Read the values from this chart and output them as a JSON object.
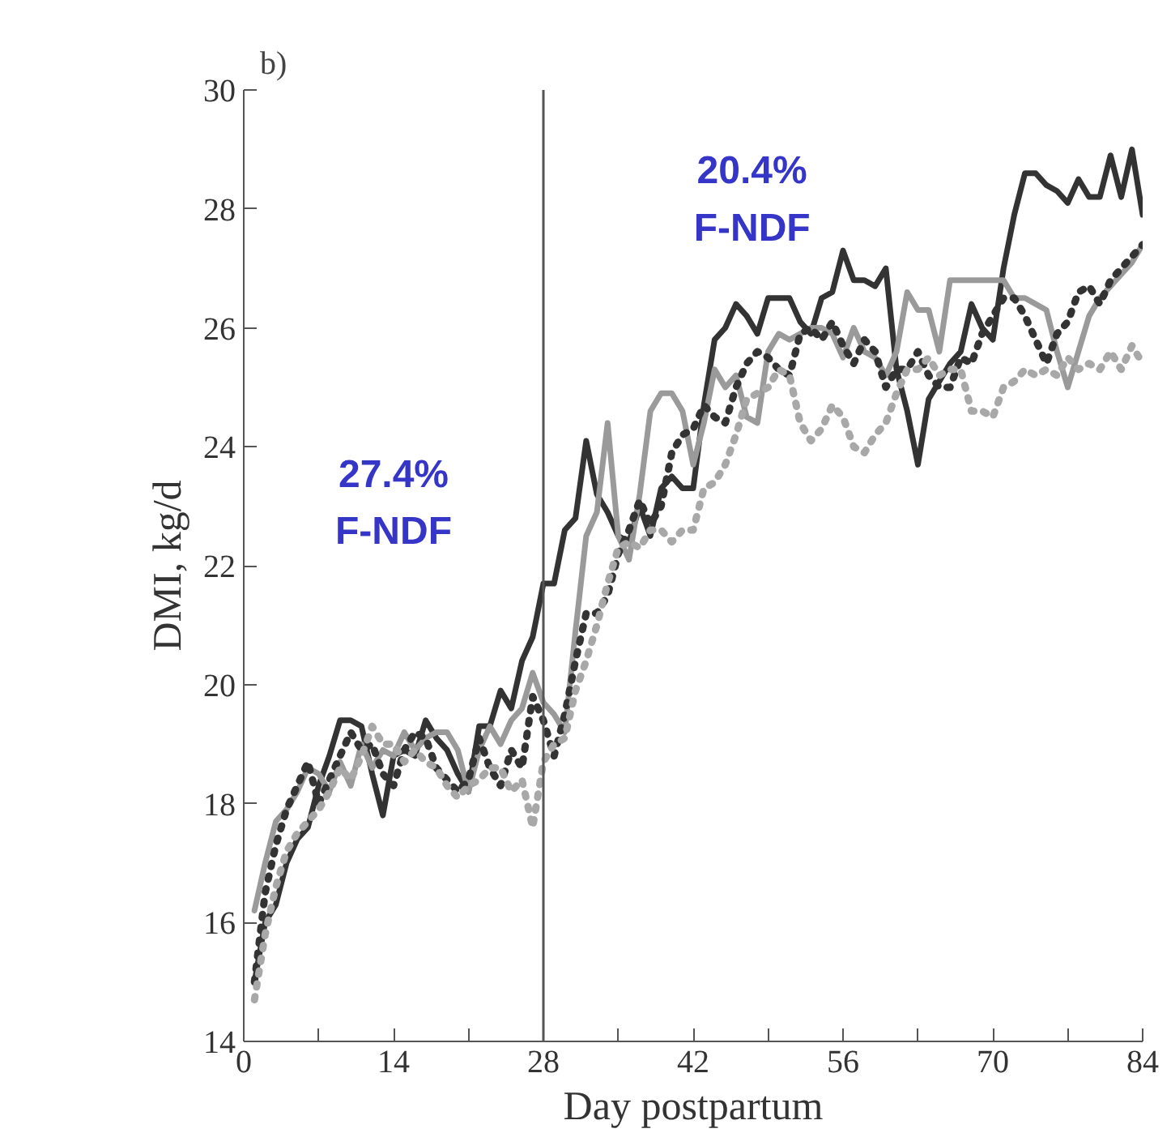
{
  "chart_data": {
    "type": "line",
    "title": "b)",
    "xlabel": "Day postpartum",
    "ylabel": "DMI, kg/d",
    "annotations": [
      "27.4%\nF-NDF",
      "20.4%\nF-NDF"
    ],
    "x": [
      1,
      2,
      3,
      4,
      5,
      6,
      7,
      8,
      9,
      10,
      11,
      12,
      13,
      14,
      15,
      16,
      17,
      18,
      19,
      20,
      21,
      22,
      23,
      24,
      25,
      26,
      27,
      28,
      29,
      30,
      31,
      32,
      33,
      34,
      35,
      36,
      37,
      38,
      39,
      40,
      41,
      42,
      43,
      44,
      45,
      46,
      47,
      48,
      49,
      50,
      51,
      52,
      53,
      54,
      55,
      56,
      57,
      58,
      59,
      60,
      61,
      62,
      63,
      64,
      65,
      66,
      67,
      68,
      69,
      70,
      71,
      72,
      73,
      74,
      75,
      76,
      77,
      78,
      79,
      80,
      81,
      82,
      83,
      84
    ],
    "xlim": [
      0,
      84
    ],
    "xticks": [
      0,
      {
        "value": 7,
        "label": null
      },
      14,
      {
        "value": 21,
        "label": null
      },
      28,
      {
        "value": 35,
        "label": null
      },
      42,
      {
        "value": 49,
        "label": null
      },
      56,
      {
        "value": 63,
        "label": null
      },
      70,
      {
        "value": 77,
        "label": null
      },
      84
    ],
    "ylim": [
      14,
      30
    ],
    "yticks": [
      14,
      16,
      18,
      20,
      22,
      24,
      26,
      28,
      30
    ],
    "grid": false,
    "ref_lines": [
      {
        "axis": "x",
        "value": 28,
        "color": "#555555"
      }
    ],
    "series": [
      {
        "color": "#333333",
        "line_style": "solid",
        "values": [
          15.0,
          16.0,
          16.3,
          17.0,
          17.4,
          17.6,
          18.3,
          18.8,
          19.4,
          19.4,
          19.3,
          18.5,
          17.8,
          18.8,
          18.9,
          18.8,
          19.4,
          19.1,
          18.9,
          18.5,
          18.2,
          19.3,
          19.3,
          19.9,
          19.6,
          20.4,
          20.8,
          21.7,
          21.7,
          22.6,
          22.8,
          24.1,
          23.2,
          22.9,
          22.5,
          22.4,
          23.0,
          22.5,
          23.3,
          23.5,
          23.3,
          23.3,
          24.7,
          25.8,
          26.0,
          26.4,
          26.2,
          25.9,
          26.5,
          26.5,
          26.5,
          26.1,
          25.9,
          26.5,
          26.6,
          27.3,
          26.8,
          26.8,
          26.7,
          27.0,
          25.3,
          24.6,
          23.7,
          24.8,
          25.1,
          25.4,
          25.6,
          26.4,
          26.0,
          25.8,
          27.0,
          27.9,
          28.6,
          28.6,
          28.4,
          28.3,
          28.1,
          28.5,
          28.2,
          28.2,
          28.9,
          28.2,
          29.0,
          27.9
        ]
      },
      {
        "color": "#9a9a9a",
        "line_style": "solid",
        "values": [
          16.2,
          17.0,
          17.7,
          17.9,
          18.2,
          18.6,
          18.5,
          18.2,
          18.7,
          18.3,
          19.0,
          18.6,
          18.9,
          18.8,
          19.2,
          18.9,
          19.1,
          19.2,
          19.2,
          18.9,
          18.2,
          18.9,
          19.3,
          19.0,
          19.4,
          19.6,
          20.2,
          19.7,
          19.5,
          19.2,
          20.9,
          22.5,
          22.9,
          24.4,
          22.5,
          22.1,
          23.2,
          24.6,
          24.9,
          24.9,
          24.6,
          23.7,
          24.4,
          25.3,
          25.0,
          25.2,
          24.5,
          24.4,
          25.6,
          25.9,
          25.8,
          25.9,
          26.0,
          26.0,
          25.9,
          25.5,
          26.0,
          25.6,
          25.5,
          25.2,
          25.6,
          26.6,
          26.3,
          26.3,
          25.6,
          26.8,
          26.8,
          26.8,
          26.8,
          26.8,
          26.8,
          26.5,
          26.5,
          26.4,
          26.3,
          25.6,
          25.0,
          25.6,
          26.2,
          26.5,
          26.7,
          26.9,
          27.1,
          27.4
        ]
      },
      {
        "color": "#333333",
        "line_style": "dotted",
        "values": [
          15.0,
          16.5,
          17.3,
          17.9,
          18.3,
          18.7,
          18.0,
          18.4,
          18.8,
          19.2,
          18.9,
          19.0,
          18.5,
          18.3,
          18.9,
          19.2,
          19.1,
          18.6,
          18.4,
          18.2,
          18.4,
          19.1,
          18.6,
          18.3,
          18.9,
          18.6,
          19.8,
          19.4,
          18.8,
          19.5,
          20.4,
          21.2,
          21.2,
          21.5,
          22.2,
          22.6,
          23.1,
          22.7,
          23.0,
          23.9,
          24.2,
          24.3,
          24.7,
          24.5,
          24.4,
          25.0,
          25.4,
          25.6,
          25.5,
          25.3,
          25.2,
          25.9,
          26.0,
          25.8,
          26.1,
          25.7,
          25.4,
          25.8,
          25.6,
          25.0,
          25.3,
          25.3,
          25.6,
          25.2,
          25.0,
          25.0,
          25.5,
          25.4,
          25.9,
          26.2,
          26.5,
          26.5,
          26.2,
          25.8,
          25.4,
          25.9,
          26.1,
          26.6,
          26.7,
          26.4,
          26.8,
          27.0,
          27.2,
          27.4
        ]
      },
      {
        "color": "#a8a8a8",
        "line_style": "dotted",
        "values": [
          14.7,
          15.8,
          16.6,
          17.2,
          17.5,
          17.7,
          17.9,
          18.2,
          18.6,
          18.4,
          18.8,
          19.3,
          19.0,
          19.0,
          18.7,
          18.9,
          18.7,
          18.6,
          18.3,
          18.1,
          18.3,
          18.4,
          18.6,
          18.6,
          18.2,
          18.4,
          17.6,
          18.7,
          19.0,
          19.1,
          19.9,
          20.4,
          21.0,
          21.7,
          22.3,
          22.4,
          22.3,
          22.6,
          22.6,
          22.4,
          22.6,
          22.6,
          23.3,
          23.4,
          23.7,
          24.2,
          24.8,
          24.9,
          25.0,
          25.3,
          25.2,
          24.4,
          24.1,
          24.3,
          24.7,
          24.5,
          24.0,
          23.9,
          24.2,
          24.4,
          24.9,
          25.3,
          25.3,
          25.5,
          25.2,
          25.3,
          25.3,
          24.6,
          24.6,
          24.5,
          25.0,
          25.1,
          25.3,
          25.2,
          25.3,
          25.2,
          25.5,
          25.3,
          25.4,
          25.3,
          25.6,
          25.3,
          25.7,
          25.4
        ]
      }
    ]
  }
}
